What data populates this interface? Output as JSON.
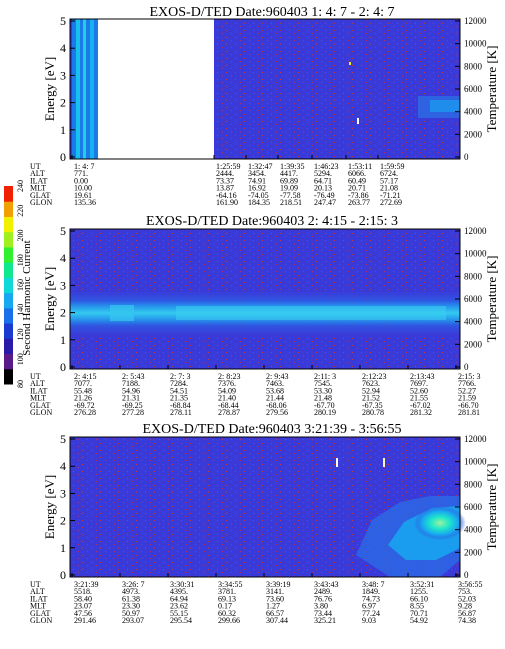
{
  "colorbar": {
    "label": "Second Harmonic Current",
    "ticks": [
      "80",
      "100",
      "120",
      "140",
      "160",
      "180",
      "200",
      "220",
      "240"
    ],
    "colors": [
      "#000000",
      "#5a1a8a",
      "#2a1aa8",
      "#1a3ad0",
      "#1a70e8",
      "#18a8f0",
      "#10d8d8",
      "#10e890",
      "#30f030",
      "#a0f020",
      "#f0f000",
      "#f0a000",
      "#f02000"
    ]
  },
  "chart_data": [
    {
      "type": "heatmap",
      "title": "EXOS-D/TED   Date:960403  1: 4: 7 - 2: 4: 7",
      "ylabel": "Energy [eV]",
      "y2label": "Temperature [K]",
      "yticks": [
        "0",
        "1",
        "2",
        "3",
        "4",
        "5"
      ],
      "ylim": [
        0,
        5
      ],
      "y2ticks": [
        "0",
        "2000",
        "4000",
        "6000",
        "8000",
        "10000",
        "12000"
      ],
      "y2lim": [
        0,
        12000
      ],
      "background": "#3a3ad8",
      "ephemeris": {
        "row_labels": [
          "UT",
          "ALT",
          "ILAT",
          "MLT",
          "GLAT",
          "GLON"
        ],
        "columns": [
          [
            "1: 4: 7",
            "771.",
            "0.00",
            "10.00",
            "19.61",
            "135.36"
          ],
          [
            "1:25:59",
            "2444.",
            "73.37",
            "13.87",
            "-64.16",
            "161.90"
          ],
          [
            "1:32:47",
            "3454.",
            "74.91",
            "16.92",
            "-74.05",
            "184.35"
          ],
          [
            "1:39:35",
            "4417.",
            "69.89",
            "19.09",
            "-77.58",
            "218.51"
          ],
          [
            "1:46:23",
            "5294.",
            "64.71",
            "20.13",
            "-76.49",
            "247.47"
          ],
          [
            "1:53:11",
            "6066.",
            "60.49",
            "20.71",
            "-73.86",
            "263.77"
          ],
          [
            "1:59:59",
            "6724.",
            "57.17",
            "21.08",
            "-71.21",
            "272.69"
          ]
        ]
      }
    },
    {
      "type": "heatmap",
      "title": "EXOS-D/TED   Date:960403  2: 4:15 - 2:15: 3",
      "ylabel": "Energy [eV]",
      "y2label": "Temperature [K]",
      "yticks": [
        "0",
        "1",
        "2",
        "3",
        "4",
        "5"
      ],
      "ylim": [
        0,
        5
      ],
      "y2ticks": [
        "0",
        "2000",
        "4000",
        "6000",
        "8000",
        "10000",
        "12000"
      ],
      "y2lim": [
        0,
        12000
      ],
      "background": "#3a3ad8",
      "ephemeris": {
        "row_labels": [
          "UT",
          "ALT",
          "ILAT",
          "MLT",
          "GLAT",
          "GLON"
        ],
        "columns": [
          [
            "2: 4:15",
            "7077.",
            "55.48",
            "21.26",
            "-69.72",
            "276.28"
          ],
          [
            "2: 5:43",
            "7188.",
            "54.96",
            "21.31",
            "-69.25",
            "277.28"
          ],
          [
            "2: 7: 3",
            "7284.",
            "54.51",
            "21.35",
            "-68.84",
            "278.11"
          ],
          [
            "2: 8:23",
            "7376.",
            "54.09",
            "21.40",
            "-68.44",
            "278.87"
          ],
          [
            "2: 9:43",
            "7463.",
            "53.68",
            "21.44",
            "-68.06",
            "279.56"
          ],
          [
            "2:11: 3",
            "7545.",
            "53.30",
            "21.48",
            "-67.70",
            "280.19"
          ],
          [
            "2:12:23",
            "7623.",
            "52.94",
            "21.52",
            "-67.35",
            "280.78"
          ],
          [
            "2:13:43",
            "7697.",
            "52.60",
            "21.55",
            "-67.02",
            "281.32"
          ],
          [
            "2:15: 3",
            "7766.",
            "52.27",
            "21.59",
            "-66.70",
            "281.81"
          ]
        ]
      }
    },
    {
      "type": "heatmap",
      "title": "EXOS-D/TED   Date:960403  3:21:39 - 3:56:55",
      "ylabel": "Energy [eV]",
      "y2label": "Temperature [K]",
      "yticks": [
        "0",
        "1",
        "2",
        "3",
        "4",
        "5"
      ],
      "ylim": [
        0,
        5
      ],
      "y2ticks": [
        "0",
        "2000",
        "4000",
        "6000",
        "8000",
        "10000",
        "12000"
      ],
      "y2lim": [
        0,
        12000
      ],
      "background": "#3a3ad8",
      "ephemeris": {
        "row_labels": [
          "UT",
          "ALT",
          "ILAT",
          "MLT",
          "GLAT",
          "GLON"
        ],
        "columns": [
          [
            "3:21:39",
            "5518.",
            "58.40",
            "23.07",
            "47.56",
            "291.46"
          ],
          [
            "3:26: 7",
            "4973.",
            "61.38",
            "23.30",
            "50.97",
            "293.07"
          ],
          [
            "3:30:31",
            "4395.",
            "64.94",
            "23.62",
            "55.15",
            "295.54"
          ],
          [
            "3:34:55",
            "3781.",
            "69.13",
            "0.17",
            "60.32",
            "299.66"
          ],
          [
            "3:39:19",
            "3141.",
            "73.60",
            "1.27",
            "66.57",
            "307.44"
          ],
          [
            "3:43:43",
            "2489.",
            "76.76",
            "3.80",
            "73.44",
            "325.21"
          ],
          [
            "3:48: 7",
            "1849.",
            "74.73",
            "6.97",
            "77.24",
            "9.03"
          ],
          [
            "3:52:31",
            "1255.",
            "66.10",
            "8.55",
            "70.71",
            "54.92"
          ],
          [
            "3:56:55",
            "753.",
            "52.03",
            "9.28",
            "56.87",
            "74.38"
          ]
        ]
      }
    }
  ]
}
